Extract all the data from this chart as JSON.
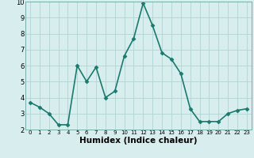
{
  "x": [
    0,
    1,
    2,
    3,
    4,
    5,
    6,
    7,
    8,
    9,
    10,
    11,
    12,
    13,
    14,
    15,
    16,
    17,
    18,
    19,
    20,
    21,
    22,
    23
  ],
  "y": [
    3.7,
    3.4,
    3.0,
    2.3,
    2.3,
    6.0,
    5.0,
    5.9,
    4.0,
    4.4,
    6.6,
    7.7,
    9.9,
    8.5,
    6.8,
    6.4,
    5.5,
    3.3,
    2.5,
    2.5,
    2.5,
    3.0,
    3.2,
    3.3
  ],
  "line_color": "#1a7a6e",
  "marker": "D",
  "marker_size": 2.5,
  "bg_color": "#d8eeee",
  "grid_color": "#b0d4d4",
  "xlabel": "Humidex (Indice chaleur)",
  "ylim": [
    2,
    10
  ],
  "xlim_min": -0.5,
  "xlim_max": 23.5,
  "yticks": [
    2,
    3,
    4,
    5,
    6,
    7,
    8,
    9,
    10
  ],
  "xticks": [
    0,
    1,
    2,
    3,
    4,
    5,
    6,
    7,
    8,
    9,
    10,
    11,
    12,
    13,
    14,
    15,
    16,
    17,
    18,
    19,
    20,
    21,
    22,
    23
  ],
  "linewidth": 1.2,
  "xlabel_fontsize": 7.5,
  "tick_fontsize_x": 5.0,
  "tick_fontsize_y": 6.0
}
